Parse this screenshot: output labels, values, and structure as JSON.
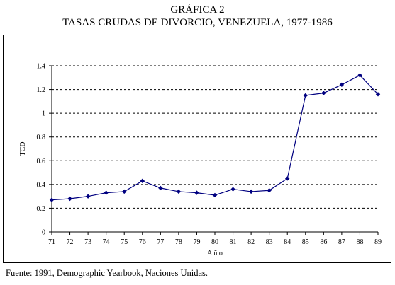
{
  "title": "GRÁFICA 2",
  "subtitle": "TASAS CRUDAS DE DIVORCIO, VENEZUELA, 1977-1986",
  "source": "Fuente: 1991, Demographic Yearbook, Naciones Unidas.",
  "chart_data": {
    "type": "line",
    "title": "GRÁFICA 2",
    "subtitle": "TASAS CRUDAS DE DIVORCIO, VENEZUELA, 1977-1986",
    "xlabel": "A ñ o",
    "ylabel": "TCD",
    "categories": [
      "71",
      "72",
      "73",
      "74",
      "75",
      "76",
      "77",
      "78",
      "79",
      "80",
      "81",
      "82",
      "83",
      "84",
      "85",
      "86",
      "87",
      "88",
      "89"
    ],
    "series": [
      {
        "values": [
          0.27,
          0.28,
          0.3,
          0.33,
          0.34,
          0.43,
          0.37,
          0.34,
          0.33,
          0.31,
          0.36,
          0.34,
          0.35,
          0.45,
          1.15,
          1.17,
          1.24,
          1.32,
          1.16
        ]
      }
    ],
    "ylim": [
      0,
      1.4
    ],
    "yticks": [
      "0",
      "0.2",
      "0.4",
      "0.6",
      "0.8",
      "1",
      "1.2",
      "1.4"
    ],
    "grid": "horizontal dashed",
    "colors": {
      "line": "#000080",
      "marker": "#000080"
    }
  }
}
